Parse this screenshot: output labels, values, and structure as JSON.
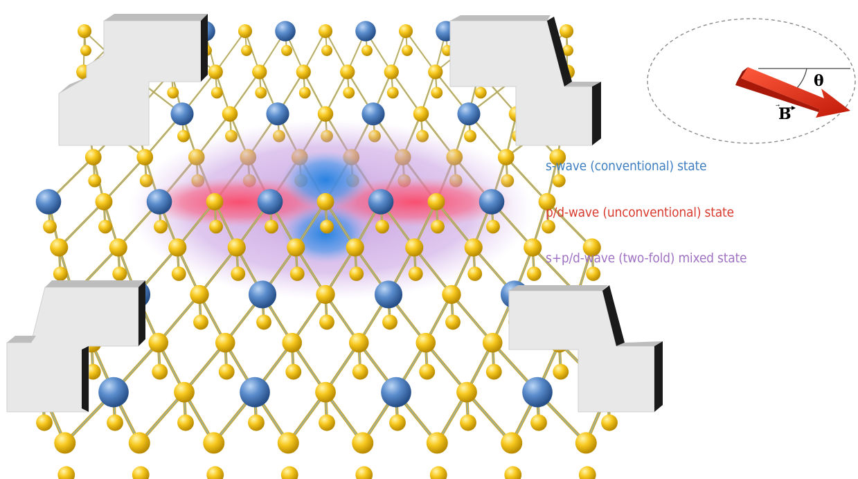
{
  "legend": {
    "s_wave": "s-wave (conventional) state",
    "pd_wave": "p/d-wave (unconventional) state",
    "mixed": "s+p/d-wave (two-fold) mixed state"
  },
  "field": {
    "angle_label": "θ",
    "vector_label": "B"
  },
  "colors": {
    "s_wave": "#3d7fc0",
    "pd_wave": "#d93a2e",
    "mixed": "#a072c4",
    "arrow": "#e02a16",
    "atom_yellow": "#f5c21a",
    "atom_blue": "#4f7fc4",
    "electrode": "#e6e6e6"
  }
}
